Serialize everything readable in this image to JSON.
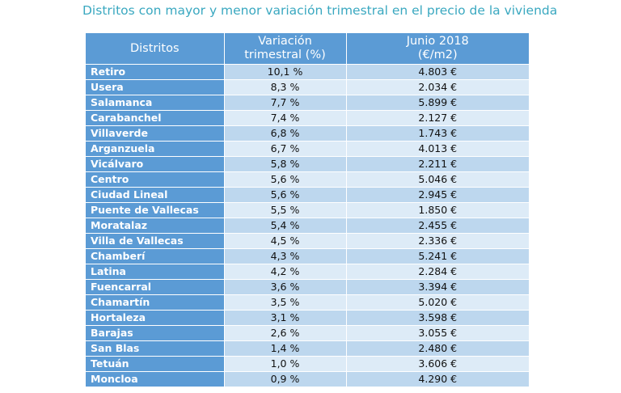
{
  "title": "Distritos con mayor y menor variación trimestral en el precio de la vivienda",
  "table": {
    "headers": {
      "district": "Distritos",
      "variation_line1": "Variación",
      "variation_line2": "trimestral (%)",
      "price_line1": "Junio 2018",
      "price_line2": "(€/m2)"
    },
    "rows": [
      {
        "district": "Retiro",
        "variation": "10,1 %",
        "price": "4.803 €"
      },
      {
        "district": "Usera",
        "variation": "8,3 %",
        "price": "2.034 €"
      },
      {
        "district": "Salamanca",
        "variation": "7,7 %",
        "price": "5.899 €"
      },
      {
        "district": "Carabanchel",
        "variation": "7,4 %",
        "price": "2.127 €"
      },
      {
        "district": "Villaverde",
        "variation": "6,8 %",
        "price": "1.743 €"
      },
      {
        "district": "Arganzuela",
        "variation": "6,7 %",
        "price": "4.013 €"
      },
      {
        "district": "Vicálvaro",
        "variation": "5,8 %",
        "price": "2.211 €"
      },
      {
        "district": "Centro",
        "variation": "5,6 %",
        "price": "5.046 €"
      },
      {
        "district": "Ciudad Lineal",
        "variation": "5,6 %",
        "price": "2.945 €"
      },
      {
        "district": "Puente de Vallecas",
        "variation": "5,5 %",
        "price": "1.850 €"
      },
      {
        "district": "Moratalaz",
        "variation": "5,4 %",
        "price": "2.455 €"
      },
      {
        "district": "Villa de Vallecas",
        "variation": "4,5 %",
        "price": "2.336 €"
      },
      {
        "district": "Chamberí",
        "variation": "4,3 %",
        "price": "5.241 €"
      },
      {
        "district": "Latina",
        "variation": "4,2 %",
        "price": "2.284 €"
      },
      {
        "district": "Fuencarral",
        "variation": "3,6 %",
        "price": "3.394 €"
      },
      {
        "district": "Chamartín",
        "variation": "3,5 %",
        "price": "5.020 €"
      },
      {
        "district": "Hortaleza",
        "variation": "3,1 %",
        "price": "3.598 €"
      },
      {
        "district": "Barajas",
        "variation": "2,6 %",
        "price": "3.055 €"
      },
      {
        "district": "San Blas",
        "variation": "1,4 %",
        "price": "2.480 €"
      },
      {
        "district": "Tetuán",
        "variation": "1,0 %",
        "price": "3.606 €"
      },
      {
        "district": "Moncloa",
        "variation": "0,9 %",
        "price": "4.290 €"
      }
    ]
  },
  "colors": {
    "title": "#3aa8c0",
    "header_bg": "#5b9bd5",
    "row_light": "#ddebf7",
    "row_medium": "#bdd7ee"
  }
}
